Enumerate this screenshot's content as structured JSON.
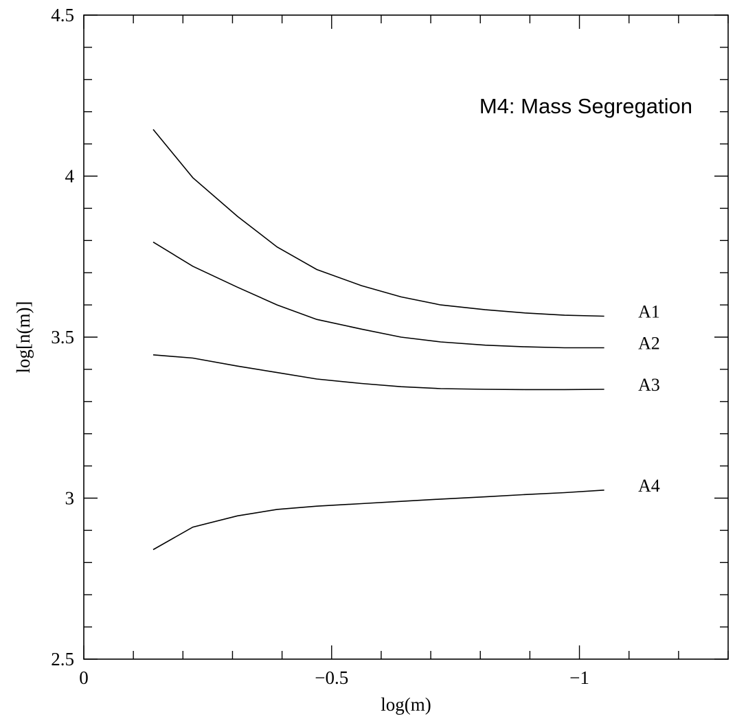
{
  "chart_data": {
    "type": "line",
    "title": "M4: Mass Segregation",
    "xlabel": "log(m)",
    "ylabel": "log[n(m)]",
    "xlim": [
      0,
      -1.3
    ],
    "ylim": [
      2.5,
      4.5
    ],
    "x_reversed": true,
    "grid": false,
    "x_ticks": [
      {
        "value": 0,
        "label": "0"
      },
      {
        "value": -0.5,
        "label": "−0.5"
      },
      {
        "value": -1,
        "label": "−1"
      }
    ],
    "x_minor_step": 0.1,
    "y_ticks": [
      {
        "value": 2.5,
        "label": "2.5"
      },
      {
        "value": 3,
        "label": "3"
      },
      {
        "value": 3.5,
        "label": "3.5"
      },
      {
        "value": 4,
        "label": "4"
      },
      {
        "value": 4.5,
        "label": "4.5"
      }
    ],
    "y_minor_step": 0.1,
    "x": [
      -0.14,
      -0.22,
      -0.31,
      -0.39,
      -0.47,
      -0.56,
      -0.64,
      -0.72,
      -0.81,
      -0.89,
      -0.97,
      -1.05
    ],
    "series": [
      {
        "name": "A1",
        "values": [
          4.145,
          3.995,
          3.875,
          3.78,
          3.71,
          3.66,
          3.625,
          3.6,
          3.585,
          3.575,
          3.568,
          3.565
        ]
      },
      {
        "name": "A2",
        "values": [
          3.795,
          3.72,
          3.655,
          3.6,
          3.555,
          3.525,
          3.5,
          3.485,
          3.475,
          3.47,
          3.467,
          3.467
        ]
      },
      {
        "name": "A3",
        "values": [
          3.445,
          3.435,
          3.41,
          3.39,
          3.37,
          3.356,
          3.346,
          3.34,
          3.338,
          3.337,
          3.337,
          3.338
        ]
      },
      {
        "name": "A4",
        "values": [
          2.84,
          2.91,
          2.945,
          2.965,
          2.975,
          2.983,
          2.99,
          2.997,
          3.004,
          3.011,
          3.017,
          3.025
        ]
      }
    ]
  }
}
